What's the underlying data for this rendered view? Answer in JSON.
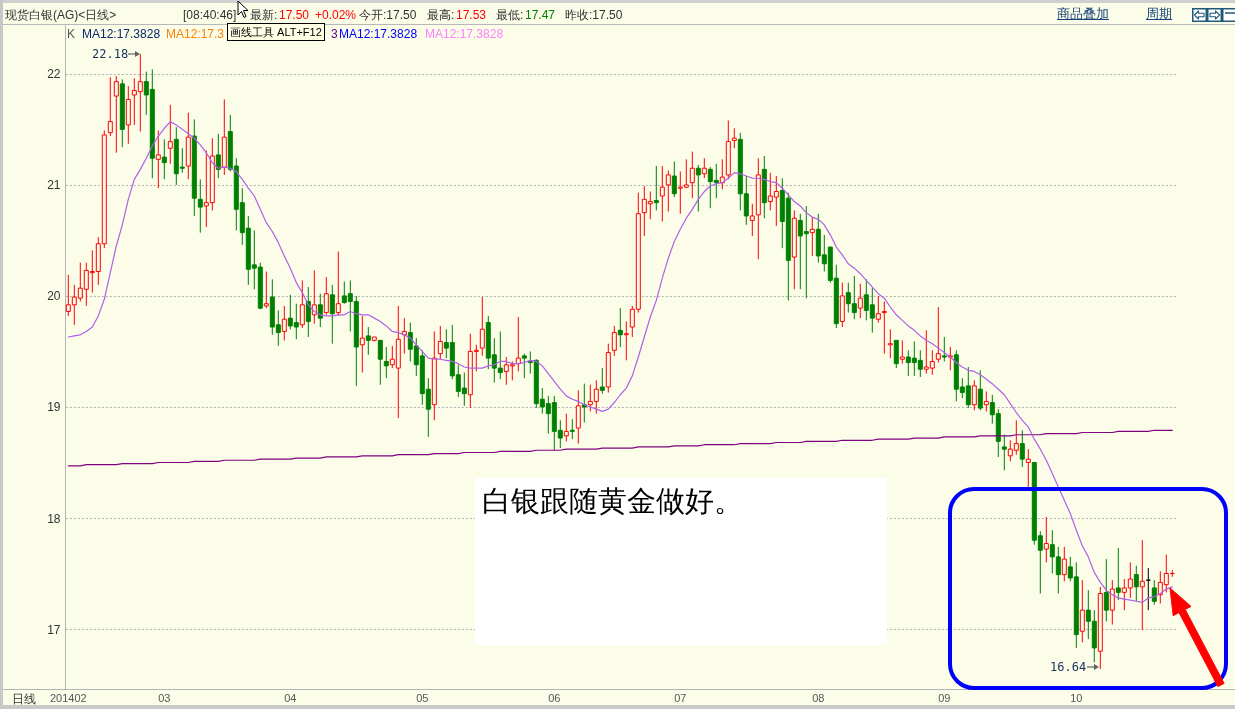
{
  "chart_data": {
    "type": "candlestick",
    "title": "现货白银(AG)<日线>",
    "categories": [
      "201402",
      null,
      null,
      null,
      null,
      null,
      null,
      null,
      null,
      null,
      null,
      null,
      null,
      null,
      null,
      null,
      "03",
      null,
      null,
      null,
      null,
      null,
      null,
      null,
      null,
      null,
      null,
      null,
      null,
      null,
      null,
      null,
      null,
      null,
      null,
      null,
      null,
      "04",
      null,
      null,
      null,
      null,
      null,
      null,
      null,
      null,
      null,
      null,
      null,
      null,
      null,
      null,
      null,
      null,
      null,
      null,
      null,
      null,
      null,
      "05",
      null,
      null,
      null,
      null,
      null,
      null,
      null,
      null,
      null,
      null,
      null,
      null,
      null,
      null,
      null,
      null,
      null,
      null,
      null,
      null,
      null,
      "06",
      null,
      null,
      null,
      null,
      null,
      null,
      null,
      null,
      null,
      null,
      null,
      null,
      null,
      null,
      null,
      null,
      null,
      null,
      null,
      null,
      "07",
      null,
      null,
      null,
      null,
      null,
      null,
      null,
      null,
      null,
      null,
      null,
      null,
      null,
      null,
      null,
      null,
      null,
      null,
      null,
      null,
      null,
      null,
      "08",
      null,
      null,
      null,
      null,
      null,
      null,
      null,
      null,
      null,
      null,
      null,
      null,
      null,
      null,
      null,
      null,
      null,
      null,
      null,
      null,
      "09",
      null,
      null,
      null,
      null,
      null,
      null,
      null,
      null,
      null,
      null,
      null,
      null,
      null,
      null,
      null,
      null,
      null,
      null,
      null,
      null,
      null,
      "10",
      null,
      null,
      null,
      null,
      null,
      null,
      null,
      null,
      null,
      null,
      null,
      null,
      null,
      null,
      null,
      null
    ],
    "ohlc": [
      [
        19.86,
        20.19,
        19.82,
        19.92
      ],
      [
        19.92,
        20.1,
        19.74,
        19.99
      ],
      [
        19.98,
        20.3,
        19.95,
        20.07
      ],
      [
        20.06,
        20.3,
        19.91,
        20.23
      ],
      [
        20.21,
        20.41,
        20.03,
        20.22
      ],
      [
        20.22,
        20.53,
        20.1,
        20.47
      ],
      [
        20.47,
        21.49,
        20.43,
        21.45
      ],
      [
        21.47,
        21.97,
        21.44,
        21.57
      ],
      [
        21.8,
        21.98,
        21.29,
        21.93
      ],
      [
        21.91,
        21.95,
        21.34,
        21.5
      ],
      [
        21.54,
        21.89,
        21.37,
        21.77
      ],
      [
        21.81,
        21.96,
        21.54,
        21.85
      ],
      [
        21.84,
        22.18,
        21.48,
        21.93
      ],
      [
        21.93,
        22.02,
        21.63,
        21.81
      ],
      [
        21.86,
        22.04,
        21.06,
        21.24
      ],
      [
        21.23,
        21.49,
        20.97,
        21.27
      ],
      [
        21.25,
        21.41,
        21.05,
        21.2
      ],
      [
        21.33,
        21.72,
        21.19,
        21.39
      ],
      [
        21.41,
        21.52,
        21.0,
        21.1
      ],
      [
        21.16,
        21.33,
        21.11,
        21.15
      ],
      [
        21.17,
        21.65,
        21.05,
        21.43
      ],
      [
        21.44,
        21.59,
        20.72,
        20.88
      ],
      [
        20.87,
        21.05,
        20.57,
        20.8
      ],
      [
        20.81,
        21.31,
        20.62,
        20.84
      ],
      [
        20.84,
        21.42,
        20.77,
        21.26
      ],
      [
        21.27,
        21.46,
        21.06,
        21.14
      ],
      [
        21.16,
        21.77,
        21.09,
        21.43
      ],
      [
        21.48,
        21.63,
        21.12,
        21.14
      ],
      [
        21.17,
        21.24,
        20.59,
        20.78
      ],
      [
        20.84,
        20.97,
        20.46,
        20.57
      ],
      [
        20.61,
        20.72,
        20.1,
        20.24
      ],
      [
        20.28,
        20.59,
        20.06,
        20.25
      ],
      [
        20.26,
        20.3,
        19.88,
        19.89
      ],
      [
        19.91,
        20.22,
        19.89,
        19.93
      ],
      [
        19.99,
        20.15,
        19.65,
        19.72
      ],
      [
        19.74,
        19.87,
        19.55,
        19.67
      ],
      [
        19.68,
        19.91,
        19.6,
        19.79
      ],
      [
        19.8,
        20.01,
        19.7,
        19.73
      ],
      [
        19.76,
        19.93,
        19.61,
        19.72
      ],
      [
        19.74,
        20.14,
        19.71,
        19.92
      ],
      [
        19.95,
        20.08,
        19.63,
        19.77
      ],
      [
        19.83,
        20.23,
        19.75,
        19.92
      ],
      [
        19.92,
        20.02,
        19.72,
        19.8
      ],
      [
        19.85,
        20.17,
        19.83,
        20.02
      ],
      [
        20.01,
        20.1,
        19.57,
        19.84
      ],
      [
        19.85,
        20.4,
        19.82,
        19.93
      ],
      [
        20.0,
        20.13,
        19.93,
        19.94
      ],
      [
        20.02,
        20.14,
        19.68,
        19.95
      ],
      [
        19.95,
        20.0,
        19.19,
        19.54
      ],
      [
        19.56,
        19.82,
        19.31,
        19.62
      ],
      [
        19.64,
        19.72,
        19.47,
        19.6
      ],
      [
        19.6,
        19.63,
        19.59,
        19.63
      ],
      [
        19.6,
        19.6,
        19.2,
        19.43
      ],
      [
        19.41,
        19.54,
        19.26,
        19.37
      ],
      [
        19.38,
        19.55,
        19.35,
        19.43
      ],
      [
        19.35,
        19.91,
        18.9,
        19.61
      ],
      [
        19.65,
        19.8,
        19.48,
        19.68
      ],
      [
        19.67,
        19.76,
        19.41,
        19.52
      ],
      [
        19.55,
        19.62,
        19.28,
        19.38
      ],
      [
        19.46,
        19.51,
        19.02,
        19.12
      ],
      [
        19.16,
        19.26,
        18.73,
        18.98
      ],
      [
        19.02,
        19.68,
        18.88,
        19.44
      ],
      [
        19.48,
        19.73,
        19.43,
        19.59
      ],
      [
        19.58,
        19.7,
        19.44,
        19.53
      ],
      [
        19.58,
        19.74,
        19.25,
        19.28
      ],
      [
        19.29,
        19.38,
        19.09,
        19.14
      ],
      [
        19.17,
        19.31,
        19.01,
        19.12
      ],
      [
        19.11,
        19.66,
        18.99,
        19.5
      ],
      [
        19.5,
        19.56,
        19.32,
        19.51
      ],
      [
        19.53,
        19.99,
        19.46,
        19.7
      ],
      [
        19.76,
        19.82,
        19.34,
        19.44
      ],
      [
        19.47,
        19.62,
        19.22,
        19.35
      ],
      [
        19.35,
        19.68,
        19.25,
        19.31
      ],
      [
        19.32,
        19.45,
        19.2,
        19.38
      ],
      [
        19.37,
        19.41,
        19.24,
        19.38
      ],
      [
        19.39,
        19.81,
        19.32,
        19.44
      ],
      [
        19.46,
        19.48,
        19.26,
        19.44
      ],
      [
        19.41,
        19.5,
        19.3,
        19.4
      ],
      [
        19.42,
        19.43,
        18.99,
        19.03
      ],
      [
        19.07,
        19.17,
        18.94,
        19.0
      ],
      [
        19.03,
        19.1,
        18.76,
        18.94
      ],
      [
        19.04,
        19.1,
        18.61,
        18.78
      ],
      [
        18.79,
        18.88,
        18.63,
        18.72
      ],
      [
        18.74,
        18.94,
        18.69,
        18.78
      ],
      [
        18.79,
        18.89,
        18.71,
        18.78
      ],
      [
        18.81,
        19.15,
        18.67,
        19.01
      ],
      [
        19.02,
        19.21,
        18.86,
        19.0
      ],
      [
        19.02,
        19.2,
        18.96,
        19.05
      ],
      [
        19.05,
        19.24,
        18.94,
        19.16
      ],
      [
        19.18,
        19.35,
        19.12,
        19.15
      ],
      [
        19.18,
        19.57,
        19.13,
        19.49
      ],
      [
        19.51,
        19.73,
        19.46,
        19.67
      ],
      [
        19.69,
        19.89,
        19.54,
        19.65
      ],
      [
        19.65,
        19.77,
        19.42,
        19.66
      ],
      [
        19.72,
        19.91,
        19.63,
        19.88
      ],
      [
        19.88,
        20.93,
        19.85,
        20.74
      ],
      [
        20.75,
        20.99,
        20.54,
        20.87
      ],
      [
        20.83,
        20.94,
        20.69,
        20.85
      ],
      [
        20.86,
        21.17,
        20.77,
        20.84
      ],
      [
        20.9,
        21.17,
        20.67,
        20.98
      ],
      [
        21.0,
        21.13,
        20.76,
        21.09
      ],
      [
        21.08,
        21.21,
        20.89,
        20.92
      ],
      [
        20.97,
        21.12,
        20.74,
        20.98
      ],
      [
        20.98,
        21.23,
        20.97,
        21.0
      ],
      [
        21.02,
        21.3,
        20.88,
        21.15
      ],
      [
        21.15,
        21.18,
        20.76,
        21.09
      ],
      [
        21.1,
        21.24,
        21.06,
        21.15
      ],
      [
        21.14,
        21.16,
        20.79,
        21.03
      ],
      [
        21.04,
        21.19,
        20.88,
        21.02
      ],
      [
        21.02,
        21.23,
        20.96,
        21.07
      ],
      [
        21.09,
        21.58,
        21.05,
        21.39
      ],
      [
        21.4,
        21.51,
        21.33,
        21.42
      ],
      [
        21.41,
        21.47,
        20.77,
        20.92
      ],
      [
        20.92,
        21.08,
        20.64,
        20.72
      ],
      [
        20.68,
        20.83,
        20.54,
        20.72
      ],
      [
        20.73,
        21.24,
        20.33,
        21.09
      ],
      [
        21.14,
        21.26,
        20.7,
        20.84
      ],
      [
        20.85,
        21.11,
        20.77,
        20.9
      ],
      [
        20.89,
        21.08,
        20.63,
        20.94
      ],
      [
        20.95,
        21.06,
        20.43,
        20.67
      ],
      [
        20.88,
        20.93,
        19.96,
        20.32
      ],
      [
        20.35,
        20.77,
        20.06,
        20.7
      ],
      [
        20.68,
        20.74,
        20.06,
        20.54
      ],
      [
        20.58,
        20.81,
        19.98,
        20.56
      ],
      [
        20.57,
        20.71,
        20.36,
        20.6
      ],
      [
        20.6,
        20.74,
        20.3,
        20.36
      ],
      [
        20.37,
        20.55,
        20.22,
        20.29
      ],
      [
        20.44,
        20.44,
        20.12,
        20.14
      ],
      [
        20.16,
        20.28,
        19.71,
        19.75
      ],
      [
        19.77,
        20.12,
        19.72,
        20.0
      ],
      [
        20.03,
        20.12,
        19.85,
        19.93
      ],
      [
        19.93,
        20.18,
        19.79,
        19.85
      ],
      [
        19.89,
        20.11,
        19.8,
        19.98
      ],
      [
        20.01,
        20.15,
        19.78,
        19.87
      ],
      [
        19.92,
        20.07,
        19.67,
        19.8
      ],
      [
        19.79,
        20.0,
        19.76,
        19.84
      ],
      [
        19.85,
        19.95,
        19.48,
        19.86
      ],
      [
        19.56,
        19.7,
        19.44,
        19.57
      ],
      [
        19.6,
        19.6,
        19.35,
        19.39
      ],
      [
        19.43,
        19.6,
        19.39,
        19.45
      ],
      [
        19.45,
        19.51,
        19.28,
        19.4
      ],
      [
        19.44,
        19.59,
        19.28,
        19.4
      ],
      [
        19.42,
        19.51,
        19.27,
        19.34
      ],
      [
        19.34,
        19.69,
        19.3,
        19.36
      ],
      [
        19.35,
        19.51,
        19.29,
        19.41
      ],
      [
        19.43,
        19.9,
        19.4,
        19.48
      ],
      [
        19.46,
        19.63,
        19.41,
        19.45
      ],
      [
        19.45,
        19.54,
        19.33,
        19.46
      ],
      [
        19.47,
        19.51,
        19.05,
        19.16
      ],
      [
        19.18,
        19.26,
        19.08,
        19.13
      ],
      [
        19.19,
        19.36,
        18.99,
        19.02
      ],
      [
        19.02,
        19.24,
        18.97,
        19.19
      ],
      [
        19.16,
        19.33,
        18.97,
        18.99
      ],
      [
        19.02,
        19.14,
        18.96,
        19.05
      ],
      [
        19.04,
        19.11,
        18.85,
        18.93
      ],
      [
        18.94,
        18.98,
        18.55,
        18.69
      ],
      [
        18.64,
        18.75,
        18.43,
        18.62
      ],
      [
        18.56,
        18.7,
        18.51,
        18.62
      ],
      [
        18.61,
        18.88,
        18.57,
        18.67
      ],
      [
        18.67,
        18.79,
        18.46,
        18.53
      ],
      [
        18.5,
        18.62,
        18.28,
        18.53
      ],
      [
        18.5,
        18.5,
        17.76,
        17.8
      ],
      [
        17.84,
        17.88,
        17.32,
        17.71
      ],
      [
        17.72,
        18.01,
        17.6,
        17.77
      ],
      [
        17.76,
        17.89,
        17.5,
        17.65
      ],
      [
        17.65,
        17.74,
        17.32,
        17.49
      ],
      [
        17.49,
        17.74,
        17.43,
        17.63
      ],
      [
        17.56,
        17.65,
        17.43,
        17.46
      ],
      [
        17.47,
        17.6,
        16.83,
        16.95
      ],
      [
        16.98,
        17.44,
        16.88,
        17.17
      ],
      [
        17.17,
        17.35,
        16.91,
        17.07
      ],
      [
        17.07,
        17.17,
        16.7,
        16.83
      ],
      [
        16.8,
        17.38,
        16.64,
        17.32
      ],
      [
        17.33,
        17.63,
        17.07,
        17.17
      ],
      [
        17.17,
        17.44,
        17.04,
        17.36
      ],
      [
        17.37,
        17.73,
        17.26,
        17.33
      ],
      [
        17.33,
        17.45,
        17.17,
        17.37
      ],
      [
        17.37,
        17.6,
        17.28,
        17.45
      ],
      [
        17.49,
        17.57,
        17.25,
        17.38
      ],
      [
        17.38,
        17.8,
        16.99,
        17.43
      ],
      [
        17.44,
        17.55,
        17.17,
        17.44
      ],
      [
        17.37,
        17.44,
        17.22,
        17.25
      ],
      [
        17.31,
        17.52,
        17.23,
        17.42
      ],
      [
        17.4,
        17.67,
        17.33,
        17.5
      ],
      [
        17.5,
        17.53,
        17.47,
        17.5
      ]
    ],
    "colors": [
      "#ff0000",
      "#ff0000",
      "#ff0000",
      "#ff0000",
      "#ff0000",
      "#ff0000",
      "#ff0000",
      "#ff0000",
      "#ff0000",
      "#008000",
      "#ff0000",
      "#ff0000",
      "#ff0000",
      "#008000",
      "#008000",
      "#ff0000",
      "#008000",
      "#ff0000",
      "#008000",
      "#008000",
      "#ff0000",
      "#008000",
      "#008000",
      "#ff0000",
      "#ff0000",
      "#008000",
      "#ff0000",
      "#008000",
      "#008000",
      "#008000",
      "#008000",
      "#008000",
      "#008000",
      "#ff0000",
      "#008000",
      "#008000",
      "#ff0000",
      "#008000",
      "#008000",
      "#ff0000",
      "#008000",
      "#ff0000",
      "#008000",
      "#ff0000",
      "#008000",
      "#ff0000",
      "#008000",
      "#008000",
      "#008000",
      "#ff0000",
      "#008000",
      "#ff0000",
      "#008000",
      "#008000",
      "#ff0000",
      "#ff0000",
      "#ff0000",
      "#008000",
      "#008000",
      "#008000",
      "#008000",
      "#ff0000",
      "#ff0000",
      "#008000",
      "#008000",
      "#008000",
      "#008000",
      "#ff0000",
      "#ff0000",
      "#ff0000",
      "#008000",
      "#008000",
      "#008000",
      "#ff0000",
      "#ff0000",
      "#ff0000",
      "#008000",
      "#008000",
      "#008000",
      "#008000",
      "#008000",
      "#008000",
      "#008000",
      "#ff0000",
      "#008000",
      "#ff0000",
      "#008000",
      "#ff0000",
      "#ff0000",
      "#008000",
      "#ff0000",
      "#ff0000",
      "#008000",
      "#ff0000",
      "#ff0000",
      "#ff0000",
      "#ff0000",
      "#ff0000",
      "#008000",
      "#ff0000",
      "#ff0000",
      "#008000",
      "#ff0000",
      "#ff0000",
      "#ff0000",
      "#008000",
      "#ff0000",
      "#008000",
      "#008000",
      "#ff0000",
      "#ff0000",
      "#ff0000",
      "#008000",
      "#008000",
      "#ff0000",
      "#ff0000",
      "#008000",
      "#ff0000",
      "#ff0000",
      "#008000",
      "#008000",
      "#ff0000",
      "#008000",
      "#008000",
      "#ff0000",
      "#008000",
      "#008000",
      "#008000",
      "#008000",
      "#ff0000",
      "#008000",
      "#008000",
      "#ff0000",
      "#008000",
      "#008000",
      "#ff0000",
      "#ff0000",
      "#ff0000",
      "#008000",
      "#ff0000",
      "#008000",
      "#008000",
      "#008000",
      "#ff0000",
      "#ff0000",
      "#ff0000",
      "#008000",
      "#ff0000",
      "#008000",
      "#008000",
      "#008000",
      "#ff0000",
      "#008000",
      "#ff0000",
      "#008000",
      "#008000",
      "#008000",
      "#ff0000",
      "#ff0000",
      "#008000",
      "#ff0000",
      "#008000",
      "#008000",
      "#ff0000",
      "#008000",
      "#008000",
      "#ff0000",
      "#008000",
      "#008000",
      "#ff0000",
      "#008000",
      "#008000",
      "#ff0000",
      "#008000",
      "#ff0000",
      "#008000",
      "#ff0000",
      "#ff0000",
      "#008000",
      "#ff0000",
      "#000000",
      "#008000",
      "#ff0000",
      "#ff0000",
      "#ff0000"
    ],
    "series": [
      {
        "type": "line",
        "color": "#800080",
        "values": [
          18.47,
          18.47,
          18.47,
          18.48,
          18.48,
          18.48,
          18.48,
          18.48,
          18.48,
          18.49,
          18.49,
          18.49,
          18.49,
          18.49,
          18.49,
          18.5,
          18.5,
          18.5,
          18.5,
          18.5,
          18.5,
          18.51,
          18.51,
          18.51,
          18.51,
          18.51,
          18.52,
          18.52,
          18.52,
          18.52,
          18.52,
          18.52,
          18.53,
          18.53,
          18.53,
          18.53,
          18.53,
          18.53,
          18.54,
          18.54,
          18.54,
          18.54,
          18.54,
          18.55,
          18.55,
          18.55,
          18.55,
          18.55,
          18.55,
          18.56,
          18.56,
          18.56,
          18.56,
          18.56,
          18.56,
          18.57,
          18.57,
          18.57,
          18.57,
          18.57,
          18.57,
          18.58,
          18.58,
          18.58,
          18.58,
          18.58,
          18.59,
          18.59,
          18.59,
          18.59,
          18.59,
          18.59,
          18.6,
          18.6,
          18.6,
          18.6,
          18.6,
          18.6,
          18.61,
          18.61,
          18.61,
          18.61,
          18.61,
          18.62,
          18.62,
          18.62,
          18.62,
          18.62,
          18.62,
          18.63,
          18.63,
          18.63,
          18.63,
          18.63,
          18.63,
          18.64,
          18.64,
          18.64,
          18.64,
          18.64,
          18.64,
          18.65,
          18.65,
          18.65,
          18.65,
          18.65,
          18.66,
          18.66,
          18.66,
          18.66,
          18.66,
          18.66,
          18.67,
          18.67,
          18.67,
          18.67,
          18.67,
          18.67,
          18.68,
          18.68,
          18.68,
          18.68,
          18.68,
          18.69,
          18.69,
          18.69,
          18.69,
          18.69,
          18.69,
          18.7,
          18.7,
          18.7,
          18.7,
          18.7,
          18.7,
          18.71,
          18.71,
          18.71,
          18.71,
          18.71,
          18.71,
          18.72,
          18.72,
          18.72,
          18.72,
          18.72,
          18.73,
          18.73,
          18.73,
          18.73,
          18.73,
          18.73,
          18.74,
          18.74,
          18.74,
          18.74,
          18.74,
          18.74,
          18.75,
          18.75,
          18.75,
          18.75,
          18.75,
          18.76,
          18.76,
          18.76,
          18.76,
          18.76,
          18.76,
          18.77,
          18.77,
          18.77,
          18.77,
          18.77,
          18.77,
          18.78,
          18.78,
          18.78,
          18.78,
          18.78,
          18.78,
          18.79,
          18.79,
          18.79,
          18.79
        ]
      },
      {
        "type": "line",
        "color": "#b060e8",
        "values": [
          19.63,
          19.64,
          19.65,
          19.68,
          19.72,
          19.82,
          19.97,
          20.21,
          20.45,
          20.64,
          20.87,
          21.05,
          21.14,
          21.24,
          21.35,
          21.44,
          21.51,
          21.57,
          21.54,
          21.5,
          21.46,
          21.42,
          21.36,
          21.29,
          21.2,
          21.15,
          21.16,
          21.15,
          21.12,
          21.05,
          20.97,
          20.9,
          20.78,
          20.66,
          20.58,
          20.48,
          20.36,
          20.25,
          20.12,
          20.03,
          19.92,
          19.86,
          19.83,
          19.82,
          19.82,
          19.83,
          19.83,
          19.86,
          19.84,
          19.83,
          19.83,
          19.8,
          19.77,
          19.73,
          19.68,
          19.67,
          19.65,
          19.62,
          19.56,
          19.5,
          19.44,
          19.43,
          19.43,
          19.42,
          19.41,
          19.39,
          19.36,
          19.35,
          19.35,
          19.35,
          19.37,
          19.38,
          19.41,
          19.41,
          19.39,
          19.39,
          19.4,
          19.42,
          19.41,
          19.37,
          19.3,
          19.23,
          19.16,
          19.1,
          19.07,
          19.05,
          19.02,
          19.0,
          18.98,
          18.96,
          18.98,
          19.04,
          19.11,
          19.17,
          19.28,
          19.45,
          19.63,
          19.81,
          19.96,
          20.16,
          20.34,
          20.49,
          20.6,
          20.7,
          20.78,
          20.87,
          20.94,
          20.99,
          21.01,
          21.02,
          21.06,
          21.11,
          21.1,
          21.08,
          21.06,
          21.06,
          21.05,
          21.03,
          21.02,
          20.97,
          20.91,
          20.85,
          20.81,
          20.75,
          20.71,
          20.69,
          20.64,
          20.55,
          20.44,
          20.37,
          20.29,
          20.25,
          20.2,
          20.14,
          20.08,
          20.02,
          19.98,
          19.9,
          19.83,
          19.78,
          19.73,
          19.69,
          19.64,
          19.6,
          19.57,
          19.53,
          19.49,
          19.45,
          19.4,
          19.36,
          19.33,
          19.32,
          19.29,
          19.25,
          19.21,
          19.16,
          19.11,
          19.03,
          18.95,
          18.88,
          18.82,
          18.71,
          18.62,
          18.52,
          18.4,
          18.28,
          18.16,
          18.04,
          17.89,
          17.75,
          17.65,
          17.51,
          17.42,
          17.35,
          17.31,
          17.28,
          17.27,
          17.26,
          17.25,
          17.24,
          17.28,
          17.29,
          17.32,
          17.36,
          17.38
        ]
      }
    ],
    "ylim": [
      16.46,
      22.44
    ],
    "yticks": [
      17,
      18,
      19,
      20,
      21,
      22
    ],
    "grid": "y",
    "annotations": [
      "[08:40:46]",
      "最新:",
      "17.50",
      "+0.02%",
      "今开:17.50",
      "最高:",
      "17.53",
      "最低:",
      "17.47",
      "昨收:17.50",
      "商品叠加",
      "周期",
      "K",
      "MA12:17.3828",
      "MA12:17.3",
      "画线工具 ALT+F12",
      "3",
      "MA12:17.3828",
      "MA12:17.3828",
      "22.18",
      "16.64",
      "白银跟随黄金做好。",
      "日线"
    ]
  }
}
